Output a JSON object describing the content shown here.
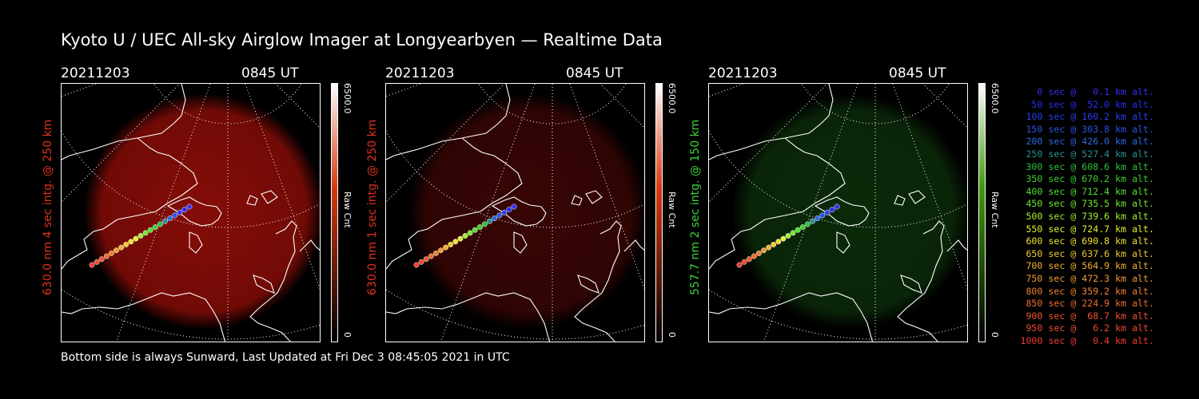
{
  "title": "Kyoto U / UEC All-sky Airglow Imager at Longyearbyen — Realtime Data",
  "footer": "Bottom side is always Sunward, Last Updated at Fri Dec  3 08:45:05 2021 in UTC",
  "panels": [
    {
      "date": "20211203",
      "time": "0845 UT",
      "ylabel": "630.0 nm 4 sec intg. @ 250 km",
      "ylabel_color": "#e0301e",
      "cb_max": "6500.0",
      "cb_min": "0",
      "cb_label": "Raw Cnt",
      "glow": "#8c0d08",
      "glow_opacity": 0.95,
      "cb_color": "#d83a10"
    },
    {
      "date": "20211203",
      "time": "0845 UT",
      "ylabel": "630.0 nm 1 sec intg. @ 250 km",
      "ylabel_color": "#e0301e",
      "cb_max": "6500.0",
      "cb_min": "0",
      "cb_label": "Raw Cnt",
      "glow": "#3a0605",
      "glow_opacity": 0.95,
      "cb_color": "#d83a10"
    },
    {
      "date": "20211203",
      "time": "0845 UT",
      "ylabel": "557.7 nm 2 sec intg. @ 150 km",
      "ylabel_color": "#3cd23c",
      "cb_max": "6500.0",
      "cb_min": "0",
      "cb_label": "Raw Cnt",
      "glow": "#0c2c0a",
      "glow_opacity": 0.95,
      "cb_color": "#3f9a0a"
    }
  ],
  "legend": [
    {
      "text": "   0 sec @   0.1 km alt.",
      "color": "#3a2cf0"
    },
    {
      "text": "  50 sec @  52.0 km alt.",
      "color": "#2a2cf0"
    },
    {
      "text": " 100 sec @ 160.2 km alt.",
      "color": "#2a40f0"
    },
    {
      "text": " 150 sec @ 303.8 km alt.",
      "color": "#2a55e8"
    },
    {
      "text": " 200 sec @ 426.0 km alt.",
      "color": "#2a6ae0"
    },
    {
      "text": " 250 sec @ 527.4 km alt.",
      "color": "#2a9090"
    },
    {
      "text": " 300 sec @ 608.6 km alt.",
      "color": "#30c040"
    },
    {
      "text": " 350 sec @ 670.2 km alt.",
      "color": "#40d030"
    },
    {
      "text": " 400 sec @ 712.4 km alt.",
      "color": "#50e030"
    },
    {
      "text": " 450 sec @ 735.5 km alt.",
      "color": "#70e830"
    },
    {
      "text": " 500 sec @ 739.6 km alt.",
      "color": "#a0f030"
    },
    {
      "text": " 550 sec @ 724.7 km alt.",
      "color": "#e0f030"
    },
    {
      "text": " 600 sec @ 690.8 km alt.",
      "color": "#f0e030"
    },
    {
      "text": " 650 sec @ 637.6 km alt.",
      "color": "#f0c830"
    },
    {
      "text": " 700 sec @ 564.9 km alt.",
      "color": "#f0b030"
    },
    {
      "text": " 750 sec @ 472.3 km alt.",
      "color": "#f09a30"
    },
    {
      "text": " 800 sec @ 359.2 km alt.",
      "color": "#f08030"
    },
    {
      "text": " 850 sec @ 224.9 km alt.",
      "color": "#f06a30"
    },
    {
      "text": " 900 sec @  68.7 km alt.",
      "color": "#f05530"
    },
    {
      "text": " 950 sec @   6.2 km alt.",
      "color": "#f04830"
    },
    {
      "text": "1000 sec @   0.4 km alt.",
      "color": "#f03a30"
    }
  ],
  "track_colors": [
    "#3a2cf0",
    "#2a2cf0",
    "#2a40f0",
    "#2a55e8",
    "#2a6ae0",
    "#2a9090",
    "#30c040",
    "#40d030",
    "#50e030",
    "#70e830",
    "#a0f030",
    "#e0f030",
    "#f0e030",
    "#f0c830",
    "#f0b030",
    "#f09a30",
    "#f08030",
    "#f06a30",
    "#f05530",
    "#f04830",
    "#f03a30"
  ]
}
